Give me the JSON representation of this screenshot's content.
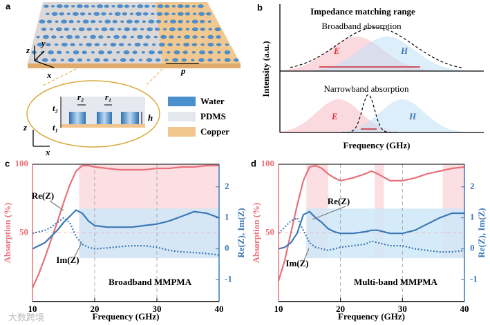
{
  "panel_a": {
    "letter": "a",
    "axis_z": "z",
    "axis_y": "y",
    "axis_x": "x",
    "period": "p",
    "t2": "t₂",
    "r2": "r₂",
    "r1": "r₁",
    "t1": "t₁",
    "h": "h",
    "axis_z2": "z",
    "axis_x2": "x",
    "legend": [
      "Water",
      "PDMS",
      "Copper"
    ]
  },
  "panel_b": {
    "letter": "b",
    "title": "Impedance matching range",
    "broadband": "Broadband absorption",
    "narrowband": "Narrowband absorption",
    "e1": "E",
    "h1": "H",
    "e2": "E",
    "h2": "H",
    "ylabel": "Intensity (a.u.)",
    "xlabel": "Frequency (GHz)"
  },
  "watermark": "大数跨境",
  "chart_data": [
    {
      "type": "line",
      "letter": "c",
      "caption": "Broadband MMPMA",
      "re_label": "Re(Z)",
      "im_label": "Im(Z)",
      "xlabel": "Frequency (GHz)",
      "ylabel": "Absorption (%)",
      "y2label": "Re(Z), Im(Z)",
      "xlim": [
        10,
        40
      ],
      "xticks": [
        10,
        20,
        30,
        40
      ],
      "ylim": [
        0,
        100
      ],
      "yticks": [
        50,
        100
      ],
      "y2lim": [
        -1.7,
        2.73
      ],
      "y2ticks": [
        -1,
        0,
        1,
        2
      ],
      "grid": true,
      "absorption_bands": [
        [
          17.5,
          40
        ]
      ],
      "matching_band": {
        "x": [
          17.5,
          40
        ],
        "y2": [
          -0.3,
          1.3
        ]
      },
      "x": [
        10,
        11,
        12,
        13,
        14,
        15,
        16,
        17,
        18,
        19,
        20,
        22,
        24,
        26,
        28,
        30,
        32,
        34,
        36,
        38,
        40
      ],
      "series": [
        {
          "name": "Absorption",
          "color": "#e8707a",
          "dash": "solid",
          "values": [
            10,
            20,
            32,
            45,
            58,
            72,
            85,
            95,
            99,
            99,
            98,
            97,
            96,
            96,
            96,
            97,
            97,
            98,
            98,
            99,
            99
          ]
        },
        {
          "name": "Re(Z)",
          "color": "#3a78b5",
          "dash": "solid",
          "axis": "y2",
          "values": [
            0,
            0.1,
            0.2,
            0.4,
            0.6,
            0.85,
            1.05,
            1.25,
            1.15,
            0.9,
            0.75,
            0.7,
            0.7,
            0.7,
            0.75,
            0.8,
            0.9,
            1.05,
            1.2,
            1.15,
            1.0
          ]
        },
        {
          "name": "Im(Z)",
          "color": "#3a78b5",
          "dash": "dotted",
          "axis": "y2",
          "values": [
            0.5,
            0.55,
            0.6,
            0.7,
            0.85,
            1.0,
            0.85,
            0.4,
            0.15,
            0.05,
            0,
            0.03,
            0.07,
            0.1,
            0.1,
            0.05,
            -0.05,
            -0.1,
            -0.12,
            -0.15,
            -0.2
          ]
        }
      ]
    },
    {
      "type": "line",
      "letter": "d",
      "caption": "Multi-band MMPMA",
      "re_label": "Re(Z)",
      "im_label": "Im(Z)",
      "xlabel": "Frequency (GHz)",
      "ylabel": "Absorption (%)",
      "y2label": "Re(Z), Im(Z)",
      "xlim": [
        10,
        40
      ],
      "xticks": [
        10,
        20,
        30,
        40
      ],
      "ylim": [
        0,
        100
      ],
      "yticks": [
        50,
        100
      ],
      "y2lim": [
        -1.7,
        2.73
      ],
      "y2ticks": [
        -1,
        0,
        1,
        2
      ],
      "grid": true,
      "absorption_bands": [
        [
          14.5,
          18
        ],
        [
          25.5,
          27
        ],
        [
          36.5,
          40
        ]
      ],
      "matching_band": {
        "x": [
          14.5,
          40
        ],
        "y2": [
          -0.3,
          1.3
        ]
      },
      "x": [
        10,
        11,
        12,
        13,
        14,
        15,
        16,
        17,
        18,
        19,
        20,
        22,
        24,
        25,
        26,
        28,
        30,
        32,
        34,
        36,
        38,
        40
      ],
      "series": [
        {
          "name": "Absorption",
          "color": "#e8707a",
          "dash": "solid",
          "values": [
            15,
            30,
            50,
            70,
            88,
            98,
            99,
            97,
            93,
            90,
            88,
            90,
            93,
            95,
            93,
            88,
            88,
            90,
            93,
            95,
            97,
            98
          ]
        },
        {
          "name": "Re(Z)",
          "color": "#3a78b5",
          "dash": "solid",
          "axis": "y2",
          "values": [
            0,
            0.05,
            0.2,
            0.5,
            1.1,
            1.2,
            1.0,
            0.85,
            0.65,
            0.55,
            0.5,
            0.5,
            0.55,
            0.6,
            0.6,
            0.5,
            0.5,
            0.6,
            0.8,
            1.0,
            1.15,
            1.15
          ]
        },
        {
          "name": "Im(Z)",
          "color": "#3a78b5",
          "dash": "dotted",
          "axis": "y2",
          "values": [
            0.5,
            0.7,
            0.9,
            1.0,
            0.6,
            0.2,
            0.05,
            0,
            -0.05,
            0,
            0.05,
            0.1,
            0.15,
            0.25,
            0.2,
            0.1,
            0.1,
            0,
            -0.05,
            -0.1,
            -0.1,
            -0.05
          ]
        }
      ]
    }
  ]
}
